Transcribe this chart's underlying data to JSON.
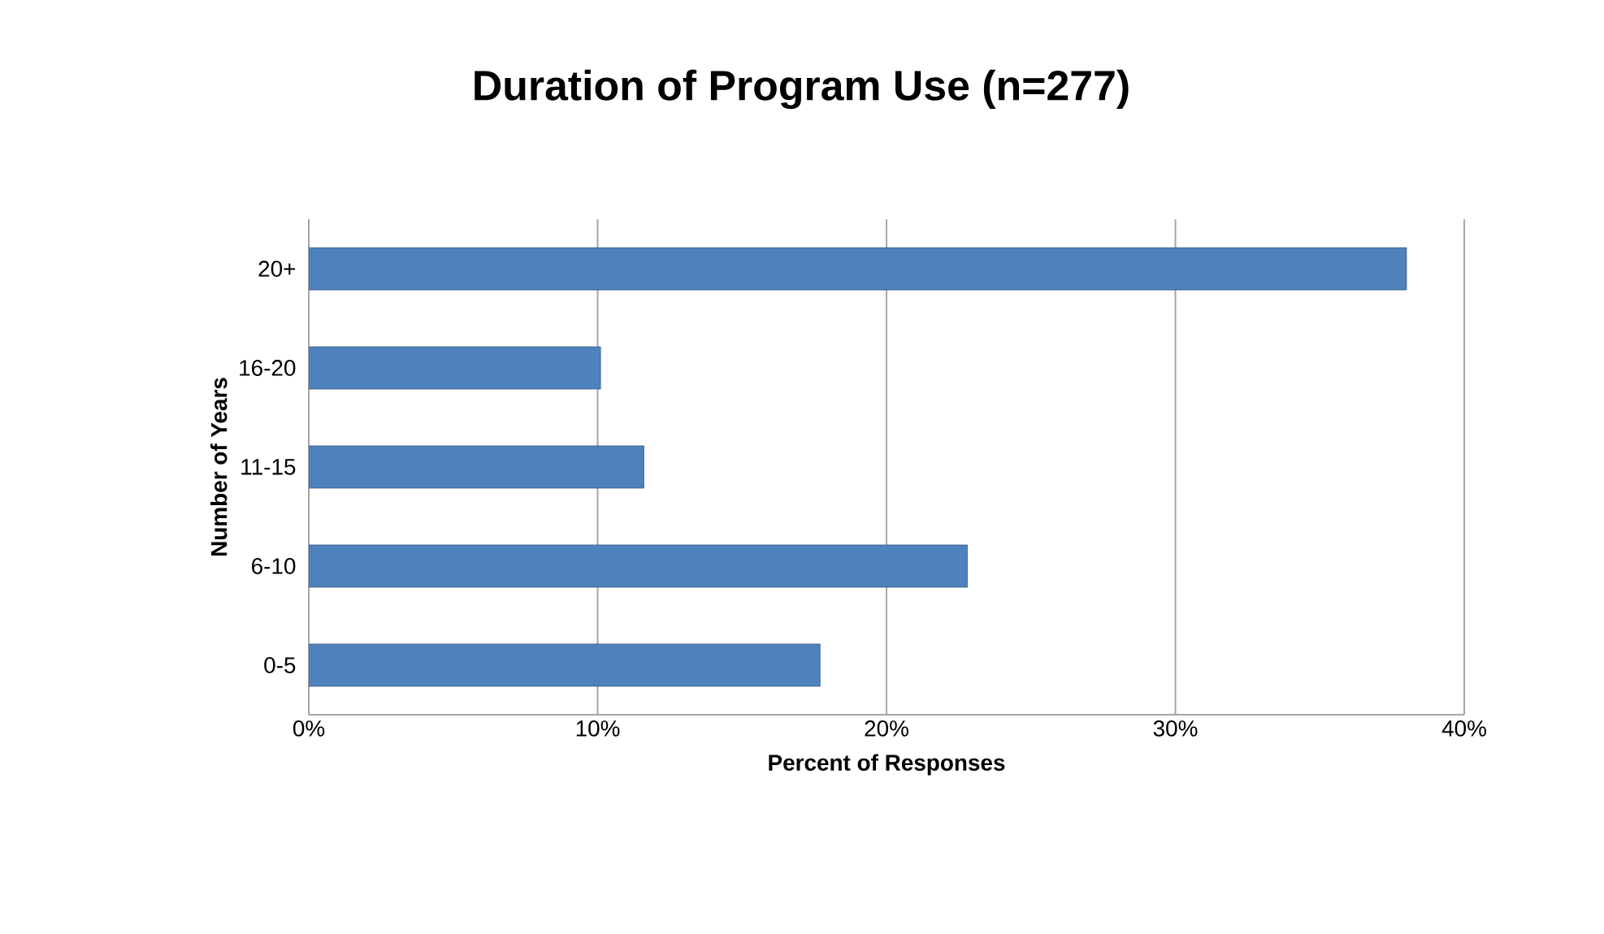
{
  "chart_data": {
    "type": "bar",
    "orientation": "horizontal",
    "title": "Duration of Program Use (n=277)",
    "xlabel": "Percent of Responses",
    "ylabel": "Number of Years",
    "categories": [
      "20+",
      "16-20",
      "11-15",
      "6-10",
      "0-5"
    ],
    "values": [
      38.0,
      10.1,
      11.6,
      22.8,
      17.7
    ],
    "color": "#4f81bd",
    "xlim": [
      0,
      40
    ],
    "xticks": [
      {
        "value": 0,
        "label": "0%"
      },
      {
        "value": 10,
        "label": "10%"
      },
      {
        "value": 20,
        "label": "20%"
      },
      {
        "value": 30,
        "label": "30%"
      },
      {
        "value": 40,
        "label": "40%"
      }
    ],
    "grid": "x"
  }
}
